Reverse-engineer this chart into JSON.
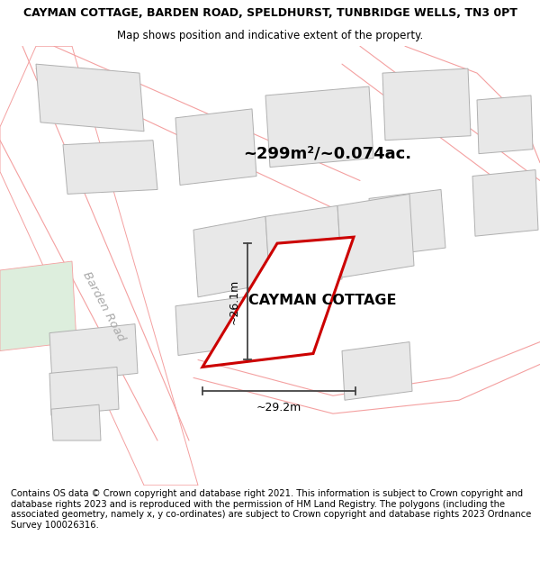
{
  "title_line1": "CAYMAN COTTAGE, BARDEN ROAD, SPELDHURST, TUNBRIDGE WELLS, TN3 0PT",
  "title_line2": "Map shows position and indicative extent of the property.",
  "area_text": "~299m²/~0.074ac.",
  "property_label": "CAYMAN COTTAGE",
  "dim1_label": "~26.1m",
  "dim2_label": "~29.2m",
  "road_label": "Barden Road",
  "footer_text": "Contains OS data © Crown copyright and database right 2021. This information is subject to Crown copyright and database rights 2023 and is reproduced with the permission of HM Land Registry. The polygons (including the associated geometry, namely x, y co-ordinates) are subject to Crown copyright and database rights 2023 Ordnance Survey 100026316.",
  "bg_color": "#ffffff",
  "building_fill": "#e8e8e8",
  "building_edge": "#b0b0b0",
  "road_fill": "#ffffff",
  "road_edge": "#f4a0a0",
  "plot_fill": "#f8f8f8",
  "plot_edge": "#cc0000",
  "green_fill": "#ddeedd",
  "dim_color": "#444444",
  "road_label_color": "#aaaaaa",
  "title_fontsize": 9.0,
  "subtitle_fontsize": 8.5,
  "label_fontsize": 11.5,
  "road_label_fontsize": 9.5,
  "area_fontsize": 13,
  "footer_fontsize": 7.2
}
